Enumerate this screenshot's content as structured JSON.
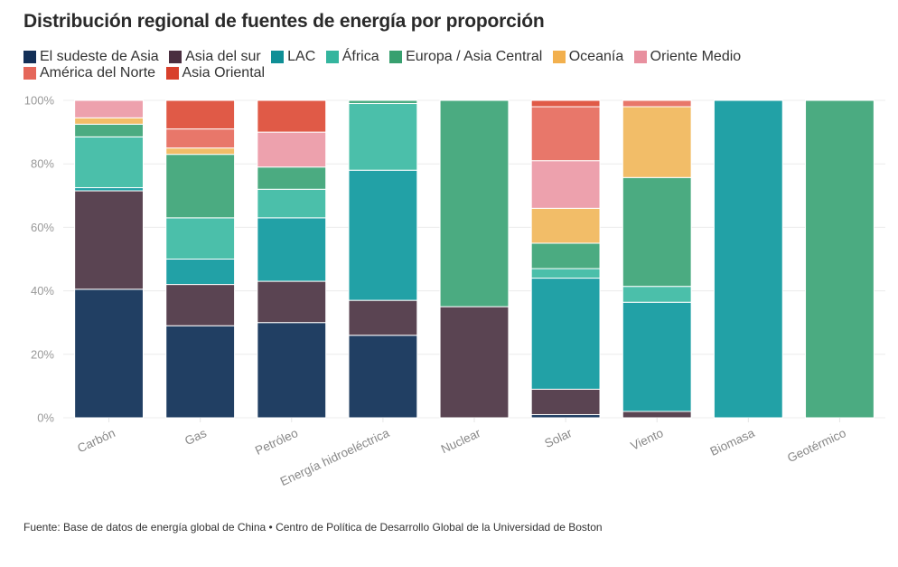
{
  "chart_data": {
    "type": "bar",
    "stacked": true,
    "normalized": true,
    "title": "Distribución regional de fuentes de energía por proporción",
    "xlabel": "",
    "ylabel": "",
    "ylim": [
      0,
      100
    ],
    "yticks": [
      "0%",
      "20%",
      "40%",
      "60%",
      "80%",
      "100%"
    ],
    "ytick_values": [
      0,
      20,
      40,
      60,
      80,
      100
    ],
    "grid": true,
    "legend_position": "top-left",
    "categories": [
      "Carbón",
      "Gas",
      "Petróleo",
      "Energía hidroeléctrica",
      "Nuclear",
      "Solar",
      "Viento",
      "Biomasa",
      "Geotérmico"
    ],
    "series": [
      {
        "name": "El sudeste de Asia",
        "color": "#213f63",
        "values": [
          40.5,
          29,
          30,
          26,
          0,
          1,
          0,
          0,
          0
        ]
      },
      {
        "name": "Asia del sur",
        "color": "#5a4452",
        "values": [
          31,
          13,
          13,
          11,
          35,
          8,
          2,
          0,
          0
        ]
      },
      {
        "name": "LAC",
        "color": "#22a1a6",
        "values": [
          1,
          8,
          20,
          41,
          0,
          35,
          34.4,
          100,
          0
        ]
      },
      {
        "name": "África",
        "color": "#4bbfaa",
        "values": [
          16,
          13,
          9,
          21,
          0,
          3,
          5,
          0,
          0
        ]
      },
      {
        "name": "Europa / Asia Central",
        "color": "#4bab81",
        "values": [
          4,
          20,
          7,
          1,
          65,
          8,
          34.3,
          0,
          100
        ]
      },
      {
        "name": "Oceanía",
        "color": "#f2bd68",
        "values": [
          2,
          2,
          0,
          0,
          0,
          11,
          22.3,
          0,
          0
        ]
      },
      {
        "name": "Oriente Medio",
        "color": "#eda1ad",
        "values": [
          5.5,
          0,
          11,
          0,
          0,
          15,
          0,
          0,
          0
        ]
      },
      {
        "name": "América del Norte",
        "color": "#e8776a",
        "values": [
          0,
          6,
          0,
          0,
          0,
          17,
          2,
          0,
          0
        ]
      },
      {
        "name": "Asia Oriental",
        "color": "#e05a47",
        "values": [
          0,
          9,
          10,
          0,
          0,
          2,
          0,
          0,
          0
        ]
      }
    ]
  },
  "legend_swatch_colors": [
    "#132f57",
    "#4a2f40",
    "#0f8f96",
    "#34b59e",
    "#38a06f",
    "#f2b04e",
    "#e8909f",
    "#e5675a",
    "#d8402c"
  ],
  "footer": {
    "source": "Fuente: Base de datos de energía global de China • Centro de Política de Desarrollo Global de la Universidad de Boston"
  }
}
